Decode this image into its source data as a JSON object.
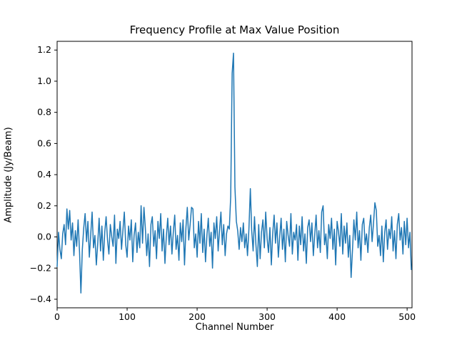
{
  "figure": {
    "title": "Frequency Profile at Max Value Position",
    "xlabel": "Channel Number",
    "ylabel": "Amplitude (Jy/Beam)",
    "background_color": "#ffffff",
    "line_color": "#1f77b4",
    "spine_color": "#000000"
  },
  "chart_data": {
    "type": "line",
    "title": "Frequency Profile at Max Value Position",
    "xlabel": "Channel Number",
    "ylabel": "Amplitude (Jy/Beam)",
    "grid": false,
    "legend": null,
    "xlim": [
      0,
      507
    ],
    "ylim": [
      -0.455,
      1.256
    ],
    "x_ticks": [
      {
        "v": 0,
        "label": "0"
      },
      {
        "v": 100,
        "label": "100"
      },
      {
        "v": 200,
        "label": "200"
      },
      {
        "v": 300,
        "label": "300"
      },
      {
        "v": 400,
        "label": "400"
      },
      {
        "v": 500,
        "label": "500"
      }
    ],
    "y_ticks": [
      {
        "v": -0.4,
        "label": "−0.4"
      },
      {
        "v": -0.2,
        "label": "−0.2"
      },
      {
        "v": 0.0,
        "label": "0.0"
      },
      {
        "v": 0.2,
        "label": "0.2"
      },
      {
        "v": 0.4,
        "label": "0.4"
      },
      {
        "v": 0.6,
        "label": "0.6"
      },
      {
        "v": 0.8,
        "label": "0.8"
      },
      {
        "v": 1.0,
        "label": "1.0"
      },
      {
        "v": 1.2,
        "label": "1.2"
      }
    ],
    "x_start": 0,
    "x_step": 2,
    "series": [
      {
        "name": "amplitude",
        "color": "#1f77b4",
        "values": [
          -0.19,
          0.03,
          -0.08,
          -0.14,
          0.02,
          0.08,
          -0.05,
          0.18,
          0.05,
          0.17,
          -0.02,
          0.09,
          -0.12,
          0.04,
          -0.06,
          0.11,
          -0.1,
          -0.36,
          -0.08,
          0.06,
          0.15,
          -0.03,
          0.1,
          -0.13,
          0.02,
          0.16,
          -0.07,
          0.01,
          -0.18,
          -0.04,
          0.12,
          -0.09,
          0.07,
          -0.15,
          0.03,
          0.13,
          -0.02,
          -0.11,
          0.08,
          0.0,
          -0.06,
          0.14,
          -0.17,
          0.05,
          -0.01,
          0.1,
          -0.08,
          0.04,
          0.16,
          -0.05,
          -0.13,
          0.07,
          -0.02,
          0.11,
          -0.16,
          0.01,
          0.09,
          -0.1,
          0.03,
          -0.07,
          0.2,
          -0.04,
          0.19,
          0.06,
          -0.12,
          0.02,
          -0.19,
          0.08,
          0.13,
          -0.06,
          0.04,
          -0.14,
          0.1,
          -0.01,
          0.15,
          -0.09,
          0.05,
          -0.17,
          0.0,
          0.12,
          -0.05,
          0.07,
          -0.11,
          0.03,
          0.14,
          -0.08,
          0.01,
          -0.15,
          0.09,
          -0.03,
          0.11,
          -0.18,
          0.06,
          0.19,
          -0.02,
          0.08,
          0.19,
          0.18,
          -0.07,
          0.02,
          -0.13,
          0.1,
          -0.04,
          0.15,
          -0.1,
          0.05,
          -0.16,
          0.01,
          0.12,
          -0.06,
          0.03,
          -0.2,
          0.09,
          -0.01,
          0.13,
          -0.09,
          0.04,
          0.16,
          -0.05,
          0.08,
          -0.12,
          0.02,
          0.07,
          0.05,
          0.26,
          1.05,
          1.18,
          0.32,
          0.1,
          0.04,
          -0.08,
          0.06,
          -0.03,
          0.09,
          -0.07,
          0.02,
          -0.12,
          0.05,
          0.31,
          0.04,
          -0.09,
          0.13,
          -0.05,
          -0.19,
          0.08,
          -0.14,
          0.03,
          0.11,
          -0.07,
          0.16,
          -0.01,
          -0.1,
          0.06,
          -0.18,
          0.02,
          0.14,
          -0.04,
          0.09,
          -0.13,
          0.0,
          0.12,
          -0.08,
          0.05,
          -0.16,
          0.1,
          0.01,
          -0.06,
          0.15,
          -0.11,
          0.03,
          -0.02,
          0.08,
          -0.15,
          0.07,
          -0.05,
          0.13,
          -0.09,
          0.02,
          -0.17,
          0.06,
          0.11,
          -0.03,
          0.09,
          -0.12,
          0.01,
          0.14,
          -0.07,
          0.04,
          -0.1,
          0.16,
          0.2,
          -0.05,
          0.02,
          -0.14,
          0.08,
          -0.01,
          0.12,
          -0.08,
          0.05,
          -0.18,
          0.1,
          0.03,
          -0.06,
          0.15,
          -0.11,
          0.07,
          -0.04,
          0.09,
          -0.13,
          0.01,
          -0.26,
          -0.08,
          0.11,
          -0.02,
          0.16,
          -0.07,
          0.04,
          -0.15,
          0.08,
          0.12,
          -0.05,
          0.02,
          -0.1,
          0.06,
          0.14,
          -0.03,
          0.09,
          0.22,
          0.17,
          -0.06,
          0.01,
          -0.12,
          0.07,
          -0.16,
          0.03,
          0.11,
          -0.08,
          0.05,
          -0.01,
          0.13,
          -0.09,
          0.04,
          -0.14,
          0.08,
          0.15,
          -0.02,
          0.06,
          -0.11,
          0.1,
          -0.05,
          0.12,
          -0.07,
          0.03,
          -0.21
        ]
      }
    ]
  }
}
